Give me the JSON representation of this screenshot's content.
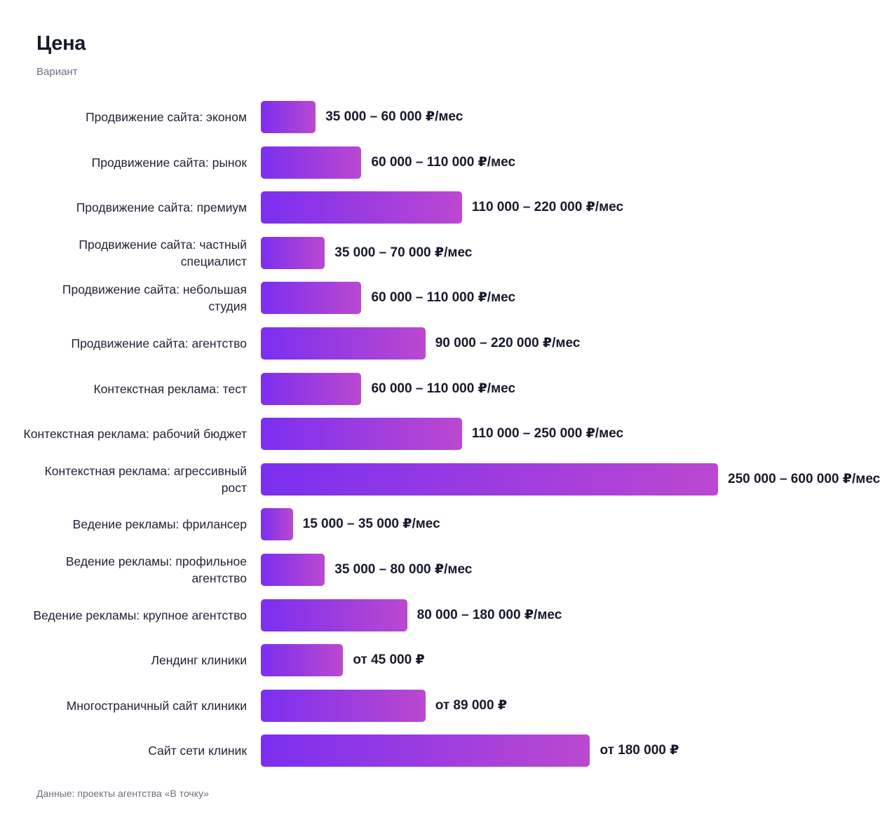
{
  "chart_data": {
    "type": "bar",
    "orientation": "horizontal",
    "title": "Цена",
    "subtitle": "Вариант",
    "source": "Данные: проекты агентства «В точку»",
    "bar_gradient": [
      "#7b2ff0",
      "#bb48d0"
    ],
    "categories": [
      "Продвижение сайта: эконом",
      "Продвижение сайта: рынок",
      "Продвижение сайта: премиум",
      "Продвижение сайта: частный специалист",
      "Продвижение сайта: небольшая студия",
      "Продвижение сайта: агентство",
      "Контекстная реклама: тест",
      "Контекстная реклама: рабочий бюджет",
      "Контекстная реклама: агрессивный рост",
      "Ведение рекламы: фрилансер",
      "Ведение рекламы: профильное агентство",
      "Ведение рекламы: крупное агентство",
      "Лендинг клиники",
      "Многостраничный сайт клиники",
      "Сайт сети клиник"
    ],
    "values": [
      60000,
      110000,
      220000,
      70000,
      110000,
      180000,
      110000,
      220000,
      500000,
      35000,
      70000,
      160000,
      90000,
      180000,
      360000
    ],
    "value_labels": [
      "35 000 – 60 000 ₽/мес",
      "60 000 – 110 000 ₽/мес",
      "110 000 – 220 000 ₽/мес",
      "35 000 – 70 000 ₽/мес",
      "60 000 – 110 000 ₽/мес",
      "90 000 – 220 000 ₽/мес",
      "60 000 – 110 000 ₽/мес",
      "110 000 – 250 000 ₽/мес",
      "250 000 – 600 000 ₽/мес",
      "15 000 – 35 000 ₽/мес",
      "35 000 – 80 000 ₽/мес",
      "80 000 – 180 000 ₽/мес",
      "от 45 000 ₽",
      "от 89 000 ₽",
      "от 180 000 ₽"
    ],
    "xlim": [
      0,
      500000
    ],
    "grid": false,
    "legend": "none"
  }
}
